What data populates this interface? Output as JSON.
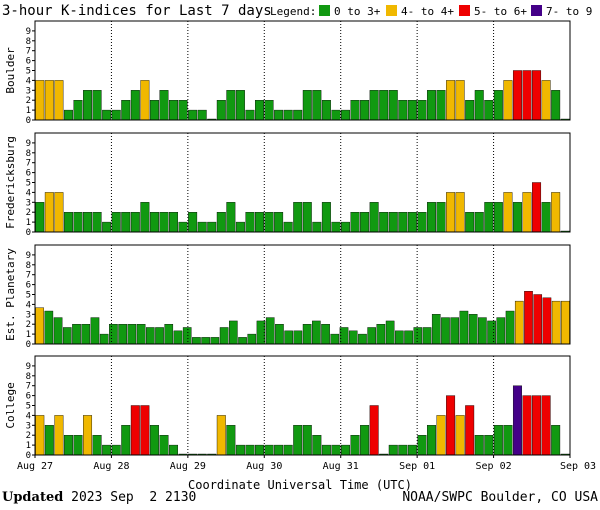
{
  "title": "3-hour K-indices for Last 7 days",
  "legend": {
    "label": "Legend:",
    "items": [
      {
        "label": "0 to 3+",
        "color": "#119911"
      },
      {
        "label": "4- to 4+",
        "color": "#f0b800"
      },
      {
        "label": "5- to 6+",
        "color": "#ee0000"
      },
      {
        "label": "7- to 9",
        "color": "#440088"
      }
    ]
  },
  "xlabel": "Coordinate Universal Time (UTC)",
  "footer": {
    "updated_label": "Updated",
    "updated_value": "2023 Sep  2 2130",
    "source": "NOAA/SWPC Boulder, CO USA"
  },
  "colors": {
    "quiet": "#119911",
    "unsettled": "#f0b800",
    "storm": "#ee0000",
    "severe": "#440088"
  },
  "chart_data": {
    "type": "bar",
    "x_ticks": [
      "Aug 27",
      "Aug 28",
      "Aug 29",
      "Aug 30",
      "Aug 31",
      "Sep 01",
      "Sep 02",
      "Sep 03"
    ],
    "ylim": [
      0,
      9
    ],
    "y_ticks": [
      0,
      1,
      2,
      3,
      4,
      5,
      6,
      7,
      8,
      9
    ],
    "grid": false,
    "legend_position": "top-right",
    "series": [
      {
        "name": "Boulder",
        "values": [
          4,
          4,
          4,
          1,
          2,
          3,
          3,
          1,
          1,
          2,
          3,
          4,
          2,
          3,
          2,
          2,
          1,
          1,
          0,
          2,
          3,
          3,
          1,
          2,
          2,
          1,
          1,
          1,
          3,
          3,
          2,
          1,
          1,
          2,
          2,
          3,
          3,
          3,
          2,
          2,
          2,
          3,
          3,
          4,
          4,
          2,
          3,
          2,
          3,
          4,
          5,
          5,
          5,
          4,
          3,
          0
        ]
      },
      {
        "name": "Fredericksburg",
        "values": [
          3,
          4,
          4,
          2,
          2,
          2,
          2,
          1,
          2,
          2,
          2,
          3,
          2,
          2,
          2,
          1,
          2,
          1,
          1,
          2,
          3,
          1,
          2,
          2,
          2,
          2,
          1,
          3,
          3,
          1,
          3,
          1,
          1,
          2,
          2,
          3,
          2,
          2,
          2,
          2,
          2,
          3,
          3,
          4,
          4,
          2,
          2,
          3,
          3,
          4,
          3,
          4,
          5,
          3,
          4,
          0
        ]
      },
      {
        "name": "Est. Planetary",
        "values": [
          3.67,
          3.33,
          2.67,
          1.67,
          2,
          2,
          2.67,
          1,
          2,
          2,
          2,
          2,
          1.67,
          1.67,
          2,
          1.33,
          1.67,
          0.67,
          0.67,
          0.67,
          1.67,
          2.33,
          0.67,
          1,
          2.33,
          2.67,
          2,
          1.33,
          1.33,
          2,
          2.33,
          2,
          1,
          1.67,
          1.33,
          1,
          1.67,
          2,
          2.33,
          1.33,
          1.33,
          1.67,
          1.67,
          3,
          2.67,
          2.67,
          3.33,
          3,
          2.67,
          2.33,
          2.67,
          3.33,
          4.33,
          5.33,
          5,
          4.67,
          4.33,
          4.33
        ]
      },
      {
        "name": "College",
        "values": [
          4,
          3,
          4,
          2,
          2,
          4,
          2,
          1,
          1,
          3,
          5,
          5,
          3,
          2,
          1,
          0,
          0,
          0,
          0,
          4,
          3,
          1,
          1,
          1,
          1,
          1,
          1,
          3,
          3,
          2,
          1,
          1,
          1,
          2,
          3,
          5,
          0,
          1,
          1,
          1,
          2,
          3,
          4,
          6,
          4,
          5,
          2,
          2,
          3,
          3,
          7,
          6,
          6,
          6,
          3,
          0
        ]
      }
    ]
  }
}
